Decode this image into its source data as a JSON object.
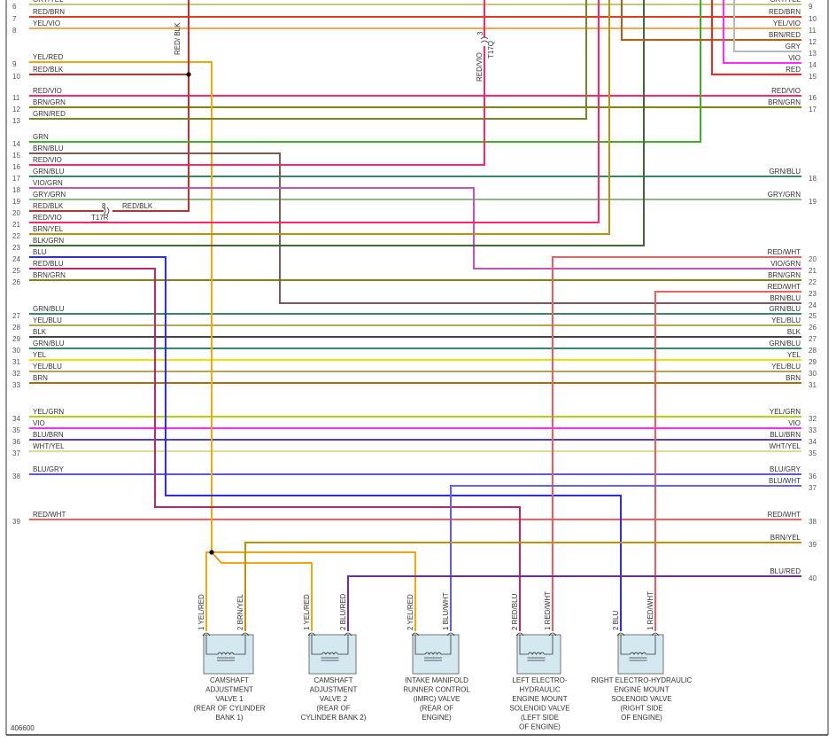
{
  "diagram_id": "406600",
  "wire_colors": {
    "RED": "#ff2424",
    "BRN": "#a0700a",
    "YEL": "#f0e000",
    "GRN": "#3cb022",
    "BLU": "#2a2aff",
    "VIO": "#ff2aff",
    "GRY": "#b8b8b8",
    "BLK": "#444444",
    "WHT": "#d8d8d8"
  },
  "left_pins": [
    {
      "pin": "6",
      "label": "GRY/YEL"
    },
    {
      "pin": "7",
      "label": "RED/BRN"
    },
    {
      "pin": "8",
      "label": "YEL/VIO"
    },
    {
      "pin": "9",
      "label": "YEL/RED"
    },
    {
      "pin": "10",
      "label": "RED/BLK"
    },
    {
      "pin": "11",
      "label": "RED/VIO"
    },
    {
      "pin": "12",
      "label": "BRN/GRN"
    },
    {
      "pin": "13",
      "label": "GRN/RED"
    },
    {
      "pin": "14",
      "label": "GRN"
    },
    {
      "pin": "15",
      "label": "BRN/BLU"
    },
    {
      "pin": "16",
      "label": "RED/VIO"
    },
    {
      "pin": "17",
      "label": "GRN/BLU"
    },
    {
      "pin": "18",
      "label": "VIO/GRN"
    },
    {
      "pin": "19",
      "label": "GRY/GRN"
    },
    {
      "pin": "20",
      "label": "RED/BLK"
    },
    {
      "pin": "21",
      "label": "RED/VIO"
    },
    {
      "pin": "22",
      "label": "BRN/YEL"
    },
    {
      "pin": "23",
      "label": "BLK/GRN"
    },
    {
      "pin": "24",
      "label": "BLU"
    },
    {
      "pin": "25",
      "label": "RED/BLU"
    },
    {
      "pin": "26",
      "label": "BRN/GRN"
    },
    {
      "pin": "27",
      "label": "GRN/BLU"
    },
    {
      "pin": "28",
      "label": "YEL/BLU"
    },
    {
      "pin": "29",
      "label": "BLK"
    },
    {
      "pin": "30",
      "label": "GRN/BLU"
    },
    {
      "pin": "31",
      "label": "YEL"
    },
    {
      "pin": "32",
      "label": "YEL/BLU"
    },
    {
      "pin": "33",
      "label": "BRN"
    },
    {
      "pin": "34",
      "label": "YEL/GRN"
    },
    {
      "pin": "35",
      "label": "VIO"
    },
    {
      "pin": "36",
      "label": "BLU/BRN"
    },
    {
      "pin": "37",
      "label": "WHT/YEL"
    },
    {
      "pin": "38",
      "label": "BLU/GRY"
    },
    {
      "pin": "39",
      "label": "RED/WHT"
    }
  ],
  "right_pins": [
    {
      "pin": "9",
      "label": "GRY/YEL"
    },
    {
      "pin": "10",
      "label": "RED/BRN"
    },
    {
      "pin": "11",
      "label": "YEL/VIO"
    },
    {
      "pin": "12",
      "label": "BRN/RED"
    },
    {
      "pin": "13",
      "label": "GRY"
    },
    {
      "pin": "14",
      "label": "VIO"
    },
    {
      "pin": "15",
      "label": "RED"
    },
    {
      "pin": "16",
      "label": "RED/VIO"
    },
    {
      "pin": "17",
      "label": "BRN/GRN"
    },
    {
      "pin": "18",
      "label": "GRN/BLU"
    },
    {
      "pin": "19",
      "label": "GRY/GRN"
    },
    {
      "pin": "20",
      "label": "RED/WHT"
    },
    {
      "pin": "21",
      "label": "VIO/GRN"
    },
    {
      "pin": "22",
      "label": "BRN/GRN"
    },
    {
      "pin": "23",
      "label": "RED/WHT"
    },
    {
      "pin": "24",
      "label": "BRN/BLU"
    },
    {
      "pin": "25",
      "label": "GRN/BLU"
    },
    {
      "pin": "26",
      "label": "YEL/BLU"
    },
    {
      "pin": "27",
      "label": "BLK"
    },
    {
      "pin": "28",
      "label": "GRN/BLU"
    },
    {
      "pin": "29",
      "label": "YEL"
    },
    {
      "pin": "30",
      "label": "YEL/BLU"
    },
    {
      "pin": "31",
      "label": "BRN"
    },
    {
      "pin": "32",
      "label": "YEL/GRN"
    },
    {
      "pin": "33",
      "label": "VIO"
    },
    {
      "pin": "34",
      "label": "BLU/BRN"
    },
    {
      "pin": "35",
      "label": "WHT/YEL"
    },
    {
      "pin": "36",
      "label": "BLU/GRY"
    },
    {
      "pin": "37",
      "label": "BLU/WHT"
    },
    {
      "pin": "38",
      "label": "RED/WHT"
    },
    {
      "pin": "39",
      "label": "BRN/YEL"
    },
    {
      "pin": "40",
      "label": "BLU/RED"
    }
  ],
  "vertical_labels": [
    {
      "label": "RED/BLK",
      "wire": "RED/BLK"
    },
    {
      "label": "RED/VIO",
      "wire": "RED/VIO"
    }
  ],
  "connectors": [
    {
      "name": "T17R",
      "pin": "8",
      "label": "RED/BLK"
    },
    {
      "name": "T17Q",
      "pin": "3"
    }
  ],
  "components": [
    {
      "name": "CAMSHAFT ADJUSTMENT VALVE 1 (REAR OF CYLINDER BANK 1)",
      "lines": [
        "CAMSHAFT",
        "ADJUSTMENT",
        "VALVE 1",
        "(REAR OF CYLINDER",
        "BANK 1)"
      ],
      "pins": [
        {
          "pin": "1",
          "wire": "YEL/RED"
        },
        {
          "pin": "2",
          "wire": "BRN/YEL"
        }
      ]
    },
    {
      "name": "CAMSHAFT ADJUSTMENT VALVE 2 (REAR OF CYLINDER BANK 2)",
      "lines": [
        "CAMSHAFT",
        "ADJUSTMENT",
        "VALVE 2",
        "(REAR OF",
        "CYLINDER BANK 2)"
      ],
      "pins": [
        {
          "pin": "1",
          "wire": "YEL/RED"
        },
        {
          "pin": "2",
          "wire": "BLU/RED"
        }
      ]
    },
    {
      "name": "INTAKE MANIFOLD RUNNER CONTROL (IMRC) VALVE (REAR OF ENGINE)",
      "lines": [
        "INTAKE MANIFOLD",
        "RUNNER CONTROL",
        "(IMRC) VALVE",
        "(REAR OF",
        "ENGINE)"
      ],
      "pins": [
        {
          "pin": "2",
          "wire": "YEL/RED"
        },
        {
          "pin": "1",
          "wire": "BLU/WHT"
        }
      ]
    },
    {
      "name": "LEFT ELECTRO-HYDRAULIC ENGINE MOUNT SOLENOID VALVE (LEFT SIDE OF ENGINE)",
      "lines": [
        "LEFT ELECTRO-",
        "HYDRAULIC",
        "ENGINE MOUNT",
        "SOLENOID VALVE",
        "(LEFT SIDE",
        "OF ENGINE)"
      ],
      "pins": [
        {
          "pin": "2",
          "wire": "RED/BLU"
        },
        {
          "pin": "1",
          "wire": "RED/WHT"
        }
      ]
    },
    {
      "name": "RIGHT ELECTRO-HYDRAULIC ENGINE MOUNT SOLENOID VALVE (RIGHT SIDE OF ENGINE)",
      "lines": [
        "RIGHT ELECTRO-HYDRAULIC",
        "ENGINE MOUNT",
        "SOLENOID VALVE",
        "(RIGHT SIDE",
        "OF ENGINE)"
      ],
      "pins": [
        {
          "pin": "2",
          "wire": "BLU"
        },
        {
          "pin": "1",
          "wire": "RED/WHT"
        }
      ]
    }
  ]
}
